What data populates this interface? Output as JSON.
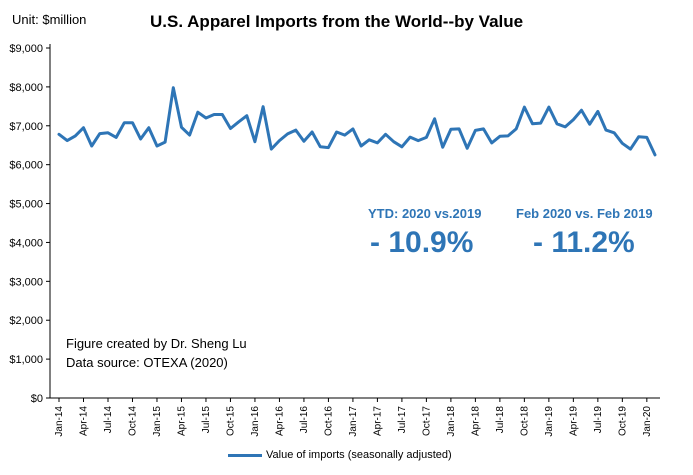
{
  "colors": {
    "series": "#2e75b6",
    "axis": "#000000",
    "text": "#000000"
  },
  "chart_data": {
    "type": "line",
    "title": "U.S. Apparel Imports from the World--by Value",
    "unit_label": "Unit: $million",
    "xlabel": "",
    "ylabel": "",
    "ylim": [
      0,
      9000
    ],
    "y_ticks": [
      "$0",
      "$1,000",
      "$2,000",
      "$3,000",
      "$4,000",
      "$5,000",
      "$6,000",
      "$7,000",
      "$8,000",
      "$9,000"
    ],
    "x_tick_labels": [
      "Jan-14",
      "Apr-14",
      "Jul-14",
      "Oct-14",
      "Jan-15",
      "Apr-15",
      "Jul-15",
      "Oct-15",
      "Jan-16",
      "Apr-16",
      "Jul-16",
      "Oct-16",
      "Jan-17",
      "Apr-17",
      "Jul-17",
      "Oct-17",
      "Jan-18",
      "Apr-18",
      "Jul-18",
      "Oct-18",
      "Jan-19",
      "Apr-19",
      "Jul-19",
      "Oct-19",
      "Jan-20"
    ],
    "grid": false,
    "legend_position": "bottom",
    "series": [
      {
        "name": "Value of imports (seasonally adjusted)",
        "values": [
          6780,
          6620,
          6740,
          6950,
          6480,
          6800,
          6820,
          6700,
          7080,
          7080,
          6660,
          6950,
          6480,
          6580,
          7980,
          6960,
          6760,
          7350,
          7200,
          7290,
          7290,
          6930,
          7100,
          7260,
          6590,
          7490,
          6400,
          6620,
          6790,
          6890,
          6600,
          6840,
          6460,
          6440,
          6840,
          6760,
          6920,
          6480,
          6640,
          6560,
          6780,
          6590,
          6460,
          6710,
          6620,
          6700,
          7180,
          6450,
          6910,
          6920,
          6420,
          6880,
          6920,
          6560,
          6730,
          6740,
          6920,
          7480,
          7050,
          7070,
          7480,
          7050,
          6970,
          7160,
          7400,
          7040,
          7370,
          6890,
          6820,
          6550,
          6400,
          6720,
          6700,
          6250
        ]
      }
    ],
    "annotations": [
      {
        "label": "YTD: 2020  vs.2019",
        "value": "- 10.9%"
      },
      {
        "label": "Feb 2020 vs. Feb 2019",
        "value": "- 11.2%"
      }
    ],
    "credits": [
      "Figure created by Dr. Sheng Lu",
      "Data source: OTEXA (2020)"
    ]
  }
}
